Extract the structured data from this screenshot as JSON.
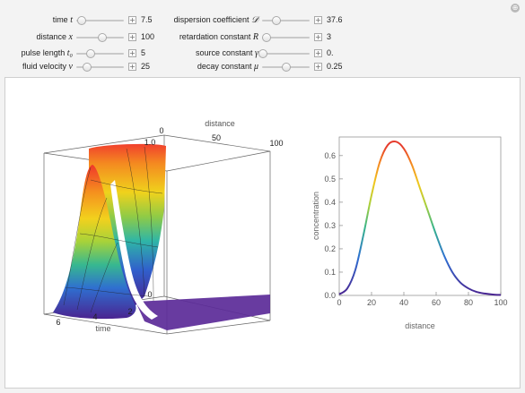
{
  "reset_icon": "⊕",
  "controls": [
    {
      "id": "time",
      "label": "time",
      "sym": "t",
      "value": "7.5",
      "fraction": 0.12
    },
    {
      "id": "distance",
      "label": "distance",
      "sym": "x",
      "value": "100",
      "fraction": 0.55
    },
    {
      "id": "pulse",
      "label": "pulse length",
      "sym": "t₀",
      "value": "5",
      "fraction": 0.3
    },
    {
      "id": "velocity",
      "label": "fluid velocity",
      "sym": "v",
      "value": "25",
      "fraction": 0.22
    },
    {
      "id": "dispersion",
      "label": "dispersion coefficient",
      "sym": "𝒟",
      "value": "37.6",
      "fraction": 0.3
    },
    {
      "id": "retardation",
      "label": "retardation constant",
      "sym": "R",
      "value": "3",
      "fraction": 0.1
    },
    {
      "id": "source",
      "label": "source constant",
      "sym": "γ",
      "value": "0.",
      "fraction": 0.02
    },
    {
      "id": "decay",
      "label": "decay constant",
      "sym": "μ",
      "value": "0.25",
      "fraction": 0.5
    }
  ],
  "plot3d": {
    "distance_label": "distance",
    "distance_ticks": [
      "0",
      "50",
      "100"
    ],
    "conc_ticks": [
      "1.0",
      "0"
    ],
    "time_label": "time",
    "time_ticks": [
      "6",
      "4",
      "2"
    ]
  },
  "chart_data": {
    "type": "line",
    "xlabel": "distance",
    "ylabel": "concentration",
    "xlim": [
      0,
      100
    ],
    "ylim": [
      0,
      0.68
    ],
    "x_ticks": [
      0,
      20,
      40,
      60,
      80,
      100
    ],
    "y_ticks": [
      0.0,
      0.1,
      0.2,
      0.3,
      0.4,
      0.5,
      0.6
    ],
    "x": [
      0,
      5,
      10,
      15,
      20,
      25,
      30,
      35,
      40,
      45,
      50,
      55,
      60,
      65,
      70,
      75,
      80,
      85,
      90,
      95,
      100
    ],
    "values": [
      0.005,
      0.03,
      0.11,
      0.26,
      0.43,
      0.57,
      0.645,
      0.66,
      0.63,
      0.56,
      0.46,
      0.36,
      0.26,
      0.17,
      0.1,
      0.055,
      0.03,
      0.015,
      0.008,
      0.004,
      0.002
    ]
  }
}
